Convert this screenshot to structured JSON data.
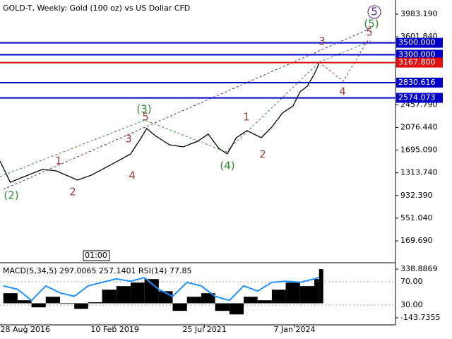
{
  "chart_data": [
    {
      "type": "line",
      "title": "GOLD-T, Weekly:  Gold (100 oz) vs US Dollar CFD",
      "x": [
        2015.97,
        2016.25,
        2016.74,
        2017.13,
        2017.51,
        2018.09,
        2018.47,
        2019.05,
        2019.54,
        2019.83,
        2019.98,
        2020.21,
        2020.6,
        2020.98,
        2021.37,
        2021.66,
        2021.95,
        2022.18,
        2022.43,
        2022.72,
        2023.11,
        2023.4,
        2023.69,
        2023.98,
        2024.17,
        2024.37,
        2024.56,
        2024.69
      ],
      "values": [
        1512,
        1156,
        1275,
        1370,
        1346,
        1191,
        1275,
        1465,
        1631,
        1904,
        2059,
        1940,
        1785,
        1750,
        1845,
        1964,
        1726,
        1631,
        1904,
        2023,
        1904,
        2082,
        2320,
        2439,
        2676,
        2771,
        2973,
        3152
      ],
      "color": "#000000",
      "xlim": [
        2015.97,
        2026.78
      ],
      "xticks": [
        {
          "value": 2016.66,
          "label": "28 Aug 2016"
        },
        {
          "value": 2019.11,
          "label": "10 Feb 2019"
        },
        {
          "value": 2021.56,
          "label": "25 Jul 2021"
        },
        {
          "value": 2024.02,
          "label": "7 Jan 2024"
        }
      ],
      "ylim": [
        -175,
        4161
      ],
      "yticks": [
        {
          "value": 3983.19,
          "label": "3983.190"
        },
        {
          "value": 3601.84,
          "label": "3601.840"
        },
        {
          "value": 2457.79,
          "label": "2457.790"
        },
        {
          "value": 2076.44,
          "label": "2076.440"
        },
        {
          "value": 1695.09,
          "label": "1695.090"
        },
        {
          "value": 1313.74,
          "label": "1313.740"
        },
        {
          "value": 932.39,
          "label": "932.390"
        },
        {
          "value": 551.04,
          "label": "551.040"
        },
        {
          "value": 169.69,
          "label": "169.690"
        }
      ],
      "levels": [
        {
          "value": 3500,
          "label": "3500.000",
          "color": "#0000c8"
        },
        {
          "value": 3300,
          "label": "3300.000",
          "color": "#0000c8"
        },
        {
          "value": 3167.8,
          "label": "3167.800",
          "color": "#e01010"
        },
        {
          "value": 2830.616,
          "label": "2830.616",
          "color": "#0000c8"
        },
        {
          "value": 2574.073,
          "label": "2574.073",
          "color": "#0000c8"
        }
      ],
      "wave_labels": [
        {
          "text": "(2)",
          "color": "#2e8b2e"
        },
        {
          "text": "1",
          "color": "#a03c3c"
        },
        {
          "text": "2",
          "color": "#a03c3c"
        },
        {
          "text": "3",
          "color": "#a03c3c"
        },
        {
          "text": "4",
          "color": "#a03c3c"
        },
        {
          "text": "(3)",
          "color": "#2e8b2e"
        },
        {
          "text": "5",
          "color": "#a03c3c"
        },
        {
          "text": "(4)",
          "color": "#2e8b2e"
        },
        {
          "text": "1",
          "color": "#a03c3c"
        },
        {
          "text": "2",
          "color": "#a03c3c"
        },
        {
          "text": "3",
          "color": "#a03c3c"
        },
        {
          "text": "4",
          "color": "#a03c3c"
        },
        {
          "text": "5",
          "color": "#a03c3c"
        },
        {
          "text": "(5)",
          "color": "#2e8b2e"
        },
        {
          "text": "5",
          "color": "#5a1e8c"
        }
      ],
      "time_label": "01:00"
    },
    {
      "type": "macd",
      "title": "MACD(5,34,5) 297.0065 257.1401 RSI(14) 77.85",
      "x": [
        2016.06,
        2016.45,
        2016.83,
        2017.22,
        2017.61,
        2018.0,
        2018.38,
        2018.76,
        2019.15,
        2019.54,
        2019.92,
        2020.31,
        2020.69,
        2021.08,
        2021.47,
        2021.85,
        2022.24,
        2022.63,
        2023.01,
        2023.4,
        2023.78,
        2024.17,
        2024.56,
        2024.69
      ],
      "xlim": [
        2015.97,
        2026.78
      ],
      "series": [
        {
          "type": "bar",
          "color": "#000000",
          "values": [
            100,
            30,
            -40,
            65,
            -5,
            -55,
            10,
            135,
            170,
            205,
            240,
            120,
            -75,
            65,
            100,
            -75,
            -110,
            65,
            30,
            135,
            205,
            170,
            240,
            338
          ]
        },
        {
          "type": "line",
          "color": "#1e90ff",
          "axis": "y2",
          "values": [
            63,
            57,
            38,
            63,
            51,
            45,
            63,
            69,
            75,
            71,
            77,
            57,
            45,
            69,
            63,
            45,
            38,
            63,
            54,
            69,
            71,
            69,
            75,
            77.85
          ]
        }
      ],
      "ylim": [
        -199.7,
        380.9
      ],
      "yticks": [
        338.8869,
        -143.7355
      ],
      "y2lim": [
        -1.5,
        99.1
      ],
      "y2ticks": [
        {
          "value": 70,
          "label": "70.00"
        },
        {
          "value": 30,
          "label": "30.00"
        }
      ]
    }
  ]
}
